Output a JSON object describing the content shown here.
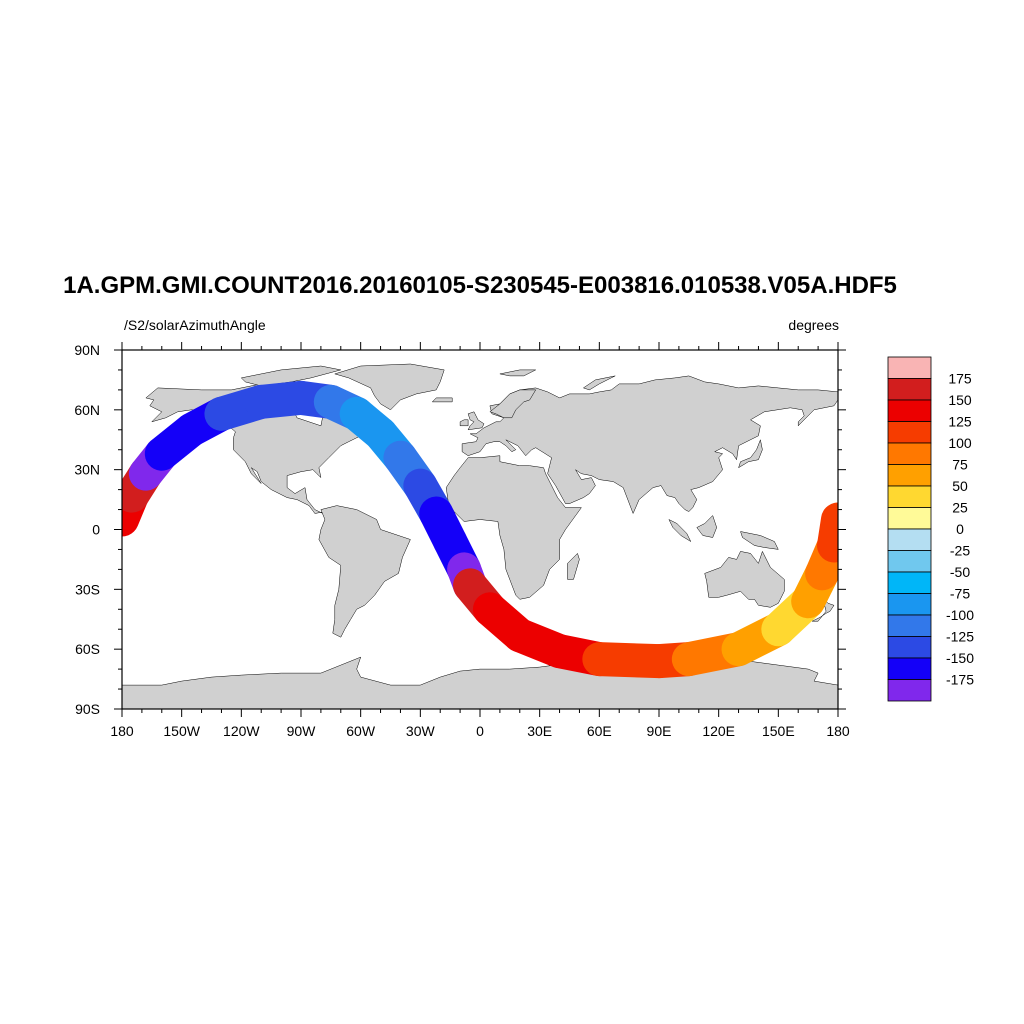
{
  "title": "1A.GPM.GMI.COUNT2016.20160105-S230545-E003816.010538.V05A.HDF5",
  "left_subtitle": "/S2/solarAzimuthAngle",
  "right_subtitle": "degrees",
  "colors": {
    "land": "#d0d0d0",
    "coastline": "#000000",
    "frame": "#000000"
  },
  "x_tick_labels": [
    {
      "lon": -180,
      "label": "180"
    },
    {
      "lon": -150,
      "label": "150W"
    },
    {
      "lon": -120,
      "label": "120W"
    },
    {
      "lon": -90,
      "label": "90W"
    },
    {
      "lon": -60,
      "label": "60W"
    },
    {
      "lon": -30,
      "label": "30W"
    },
    {
      "lon": 0,
      "label": "0"
    },
    {
      "lon": 30,
      "label": "30E"
    },
    {
      "lon": 60,
      "label": "60E"
    },
    {
      "lon": 90,
      "label": "90E"
    },
    {
      "lon": 120,
      "label": "120E"
    },
    {
      "lon": 150,
      "label": "150E"
    },
    {
      "lon": 180,
      "label": "180"
    }
  ],
  "y_tick_labels": [
    {
      "lat": 90,
      "label": "90N"
    },
    {
      "lat": 60,
      "label": "60N"
    },
    {
      "lat": 30,
      "label": "30N"
    },
    {
      "lat": 0,
      "label": "0"
    },
    {
      "lat": -30,
      "label": "30S"
    },
    {
      "lat": -60,
      "label": "60S"
    },
    {
      "lat": -90,
      "label": "90S"
    }
  ],
  "colorbar": {
    "colors": [
      "#f9b4b4",
      "#d21e1e",
      "#ec0000",
      "#f63c00",
      "#ff7800",
      "#ffa000",
      "#ffd830",
      "#fffa98",
      "#b4def2",
      "#70c8ee",
      "#00b6f8",
      "#1a96f0",
      "#3278ea",
      "#2c4ae4",
      "#1400f8",
      "#8028ec"
    ],
    "labels": [
      "175",
      "150",
      "125",
      "100",
      "75",
      "50",
      "25",
      "0",
      "-25",
      "-50",
      "-75",
      "-100",
      "-125",
      "-150",
      "-175"
    ]
  },
  "chart_data": {
    "type": "map",
    "projection": "cylindrical equidistant",
    "xlim": [
      -180,
      180
    ],
    "ylim": [
      -90,
      90
    ],
    "swath": [
      {
        "lon": -180,
        "lat": 5,
        "value": 150
      },
      {
        "lon": -175,
        "lat": 17,
        "value": 175
      },
      {
        "lon": -168,
        "lat": 28,
        "value": -175
      },
      {
        "lon": -160,
        "lat": 38,
        "value": -150
      },
      {
        "lon": -145,
        "lat": 50,
        "value": -150
      },
      {
        "lon": -130,
        "lat": 58,
        "value": -125
      },
      {
        "lon": -110,
        "lat": 64,
        "value": -125
      },
      {
        "lon": -90,
        "lat": 66,
        "value": -125
      },
      {
        "lon": -75,
        "lat": 64,
        "value": -100
      },
      {
        "lon": -62,
        "lat": 58,
        "value": -75
      },
      {
        "lon": -50,
        "lat": 48,
        "value": -75
      },
      {
        "lon": -40,
        "lat": 36,
        "value": -100
      },
      {
        "lon": -30,
        "lat": 22,
        "value": -125
      },
      {
        "lon": -22,
        "lat": 8,
        "value": -150
      },
      {
        "lon": -15,
        "lat": -6,
        "value": -150
      },
      {
        "lon": -8,
        "lat": -20,
        "value": -175
      },
      {
        "lon": -5,
        "lat": -28,
        "value": 175
      },
      {
        "lon": 5,
        "lat": -40,
        "value": 150
      },
      {
        "lon": 20,
        "lat": -53,
        "value": 150
      },
      {
        "lon": 40,
        "lat": -61,
        "value": 150
      },
      {
        "lon": 60,
        "lat": -65,
        "value": 125
      },
      {
        "lon": 90,
        "lat": -66,
        "value": 125
      },
      {
        "lon": 105,
        "lat": -65,
        "value": 100
      },
      {
        "lon": 130,
        "lat": -60,
        "value": 75
      },
      {
        "lon": 150,
        "lat": -50,
        "value": 50
      },
      {
        "lon": 165,
        "lat": -36,
        "value": 75
      },
      {
        "lon": 172,
        "lat": -22,
        "value": 100
      },
      {
        "lon": 178,
        "lat": -8,
        "value": 125
      },
      {
        "lon": 180,
        "lat": 5,
        "value": 150
      }
    ],
    "legend_placement": "right"
  }
}
